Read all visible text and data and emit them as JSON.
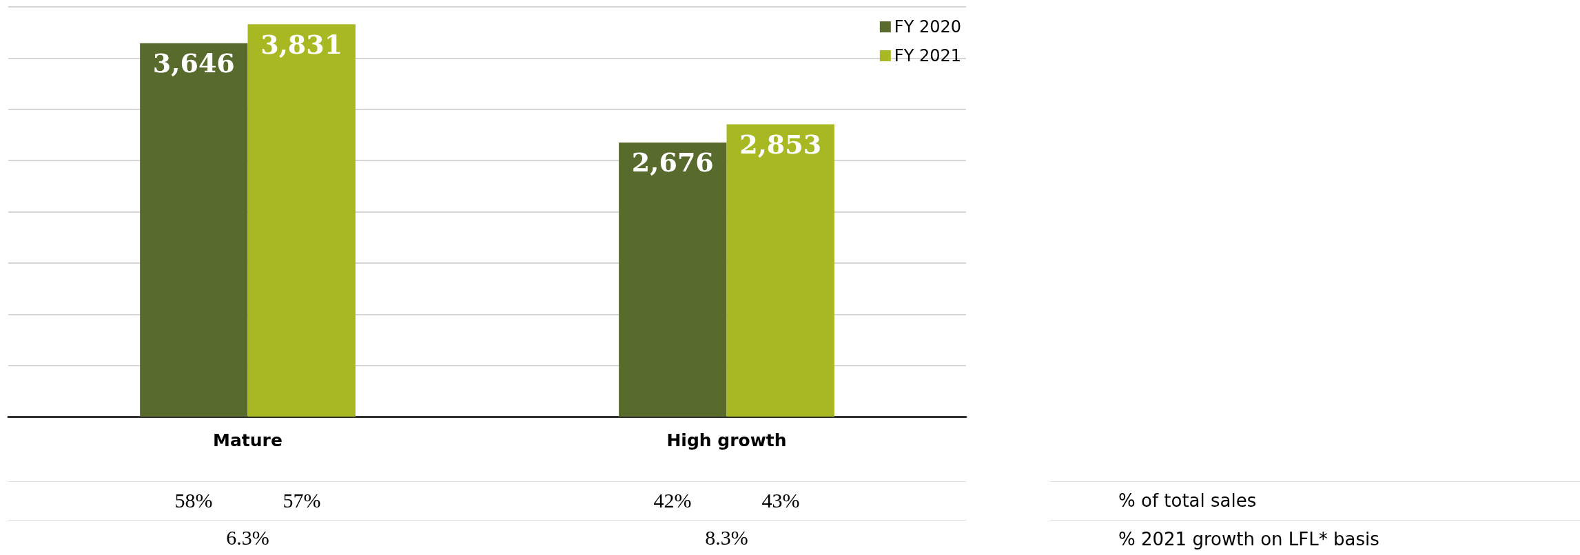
{
  "chart_data": {
    "type": "bar",
    "categories": [
      "Mature",
      "High growth"
    ],
    "series": [
      {
        "name": "FY 2020",
        "color": "#596b2c",
        "values": [
          3646,
          2676
        ],
        "value_labels": [
          "3,646",
          "2,676"
        ]
      },
      {
        "name": "FY 2021",
        "color": "#a8b823",
        "values": [
          3831,
          2853
        ],
        "value_labels": [
          "3,831",
          "2,853"
        ]
      }
    ],
    "grid": "y",
    "legend": "top right",
    "annotations": [
      "58%",
      "57%",
      "42%",
      "43%",
      "6.3%",
      "8.3%",
      "% of total sales",
      "% 2021 growth on LFL* basis"
    ]
  }
}
